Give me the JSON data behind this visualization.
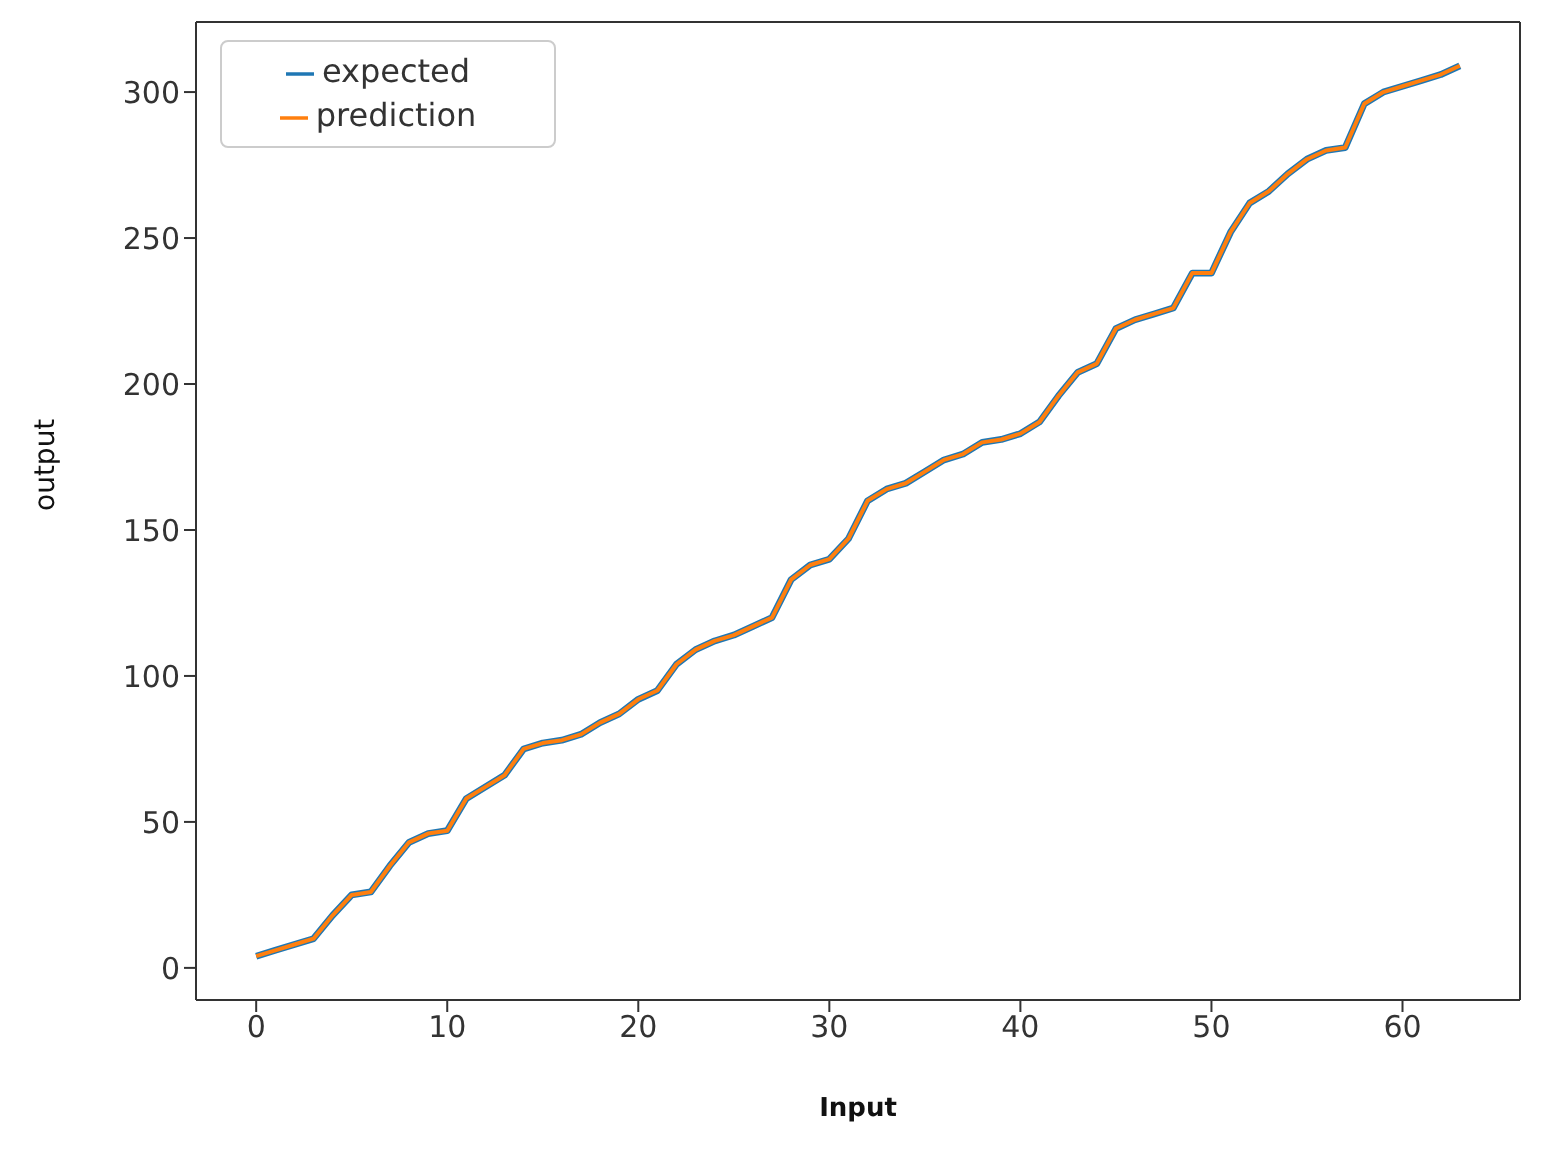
{
  "chart_data": {
    "type": "line",
    "xlabel": "Input",
    "ylabel": "output",
    "x": [
      0,
      1,
      2,
      3,
      4,
      5,
      6,
      7,
      8,
      9,
      10,
      11,
      12,
      13,
      14,
      15,
      16,
      17,
      18,
      19,
      20,
      21,
      22,
      23,
      24,
      25,
      26,
      27,
      28,
      29,
      30,
      31,
      32,
      33,
      34,
      35,
      36,
      37,
      38,
      39,
      40,
      41,
      42,
      43,
      44,
      45,
      46,
      47,
      48,
      49,
      50,
      51,
      52,
      53,
      54,
      55,
      56,
      57,
      58,
      59,
      60,
      61,
      62,
      63
    ],
    "series": [
      {
        "name": "expected",
        "color": "#1f77b4",
        "values": [
          4,
          6,
          8,
          10,
          18,
          25,
          26,
          35,
          43,
          46,
          47,
          58,
          62,
          66,
          75,
          77,
          78,
          80,
          84,
          87,
          92,
          95,
          104,
          109,
          112,
          114,
          117,
          120,
          133,
          138,
          140,
          147,
          160,
          164,
          166,
          170,
          174,
          176,
          180,
          181,
          183,
          187,
          196,
          204,
          207,
          219,
          222,
          224,
          226,
          238,
          238,
          252,
          262,
          266,
          272,
          277,
          280,
          281,
          296,
          300,
          302,
          304,
          306,
          309
        ]
      },
      {
        "name": "prediction",
        "color": "#ff7f0e",
        "values": [
          4,
          6,
          8,
          10,
          18,
          25,
          26,
          35,
          43,
          46,
          47,
          58,
          62,
          66,
          75,
          77,
          78,
          80,
          84,
          87,
          92,
          95,
          104,
          109,
          112,
          114,
          117,
          120,
          133,
          138,
          140,
          147,
          160,
          164,
          166,
          170,
          174,
          176,
          180,
          181,
          183,
          187,
          196,
          204,
          207,
          219,
          222,
          224,
          226,
          238,
          238,
          252,
          262,
          266,
          272,
          277,
          280,
          281,
          296,
          300,
          302,
          304,
          306,
          309
        ]
      }
    ],
    "xlim": [
      -3.15,
      66.15
    ],
    "xticks": [
      0,
      10,
      20,
      30,
      40,
      50,
      60
    ],
    "ylim": [
      -11,
      324
    ],
    "yticks": [
      0,
      50,
      100,
      150,
      200,
      250,
      300
    ],
    "grid": false,
    "legend": "top left",
    "marker": "none",
    "line_style": "solid"
  }
}
